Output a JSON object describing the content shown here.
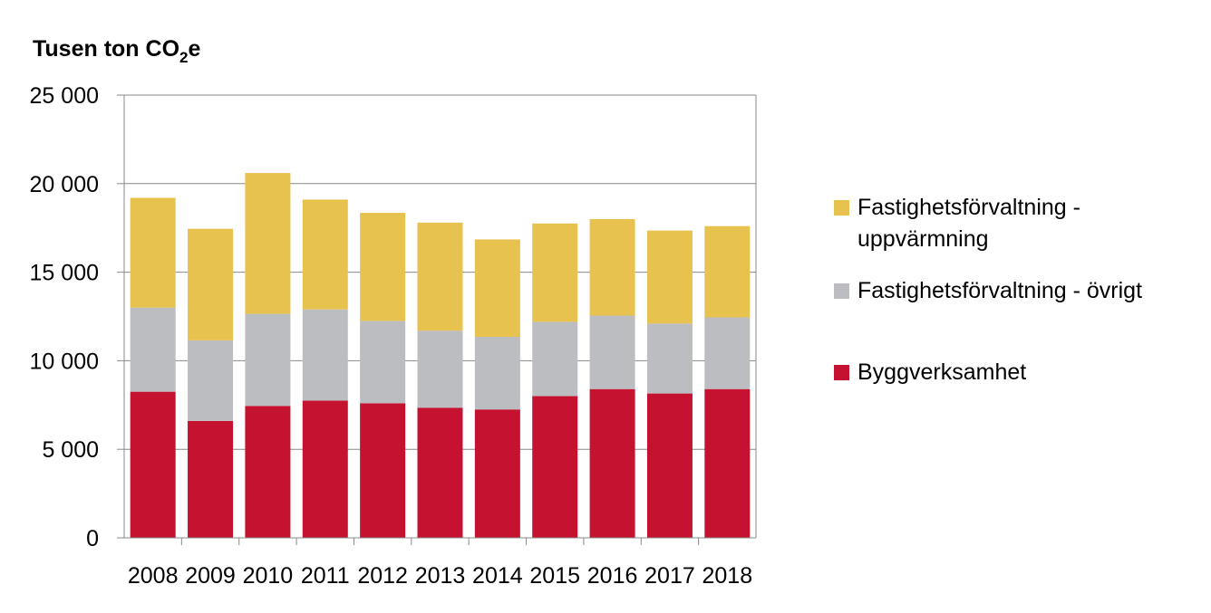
{
  "chart_data": {
    "type": "bar",
    "stacked": true,
    "ylabel": "Tusen ton CO",
    "ylabel_sub": "2",
    "ylabel_tail": "e",
    "categories": [
      "2008",
      "2009",
      "2010",
      "2011",
      "2012",
      "2013",
      "2014",
      "2015",
      "2016",
      "2017",
      "2018"
    ],
    "ylim": [
      0,
      25000
    ],
    "yticks": [
      0,
      5000,
      10000,
      15000,
      20000,
      25000
    ],
    "ytick_labels": [
      "0",
      "5 000",
      "10 000",
      "15 000",
      "20 000",
      "25 000"
    ],
    "grid": true,
    "legend_position": "right",
    "series": [
      {
        "name": "Byggverksamhet",
        "color": "#c41230",
        "values": [
          8250,
          6600,
          7450,
          7750,
          7600,
          7350,
          7250,
          8000,
          8400,
          8150,
          8400
        ]
      },
      {
        "name": "Fastighetsförvaltning - övrigt",
        "color": "#bcbdc0",
        "values": [
          4750,
          4550,
          5200,
          5150,
          4650,
          4350,
          4100,
          4200,
          4150,
          3950,
          4050
        ]
      },
      {
        "name": "Fastighetsförvaltning - uppvärmning",
        "color": "#e8c24e",
        "values": [
          6200,
          6300,
          7950,
          6200,
          6100,
          6100,
          5500,
          5550,
          5450,
          5250,
          5150
        ]
      }
    ],
    "legend_order": [
      2,
      1,
      0
    ]
  }
}
